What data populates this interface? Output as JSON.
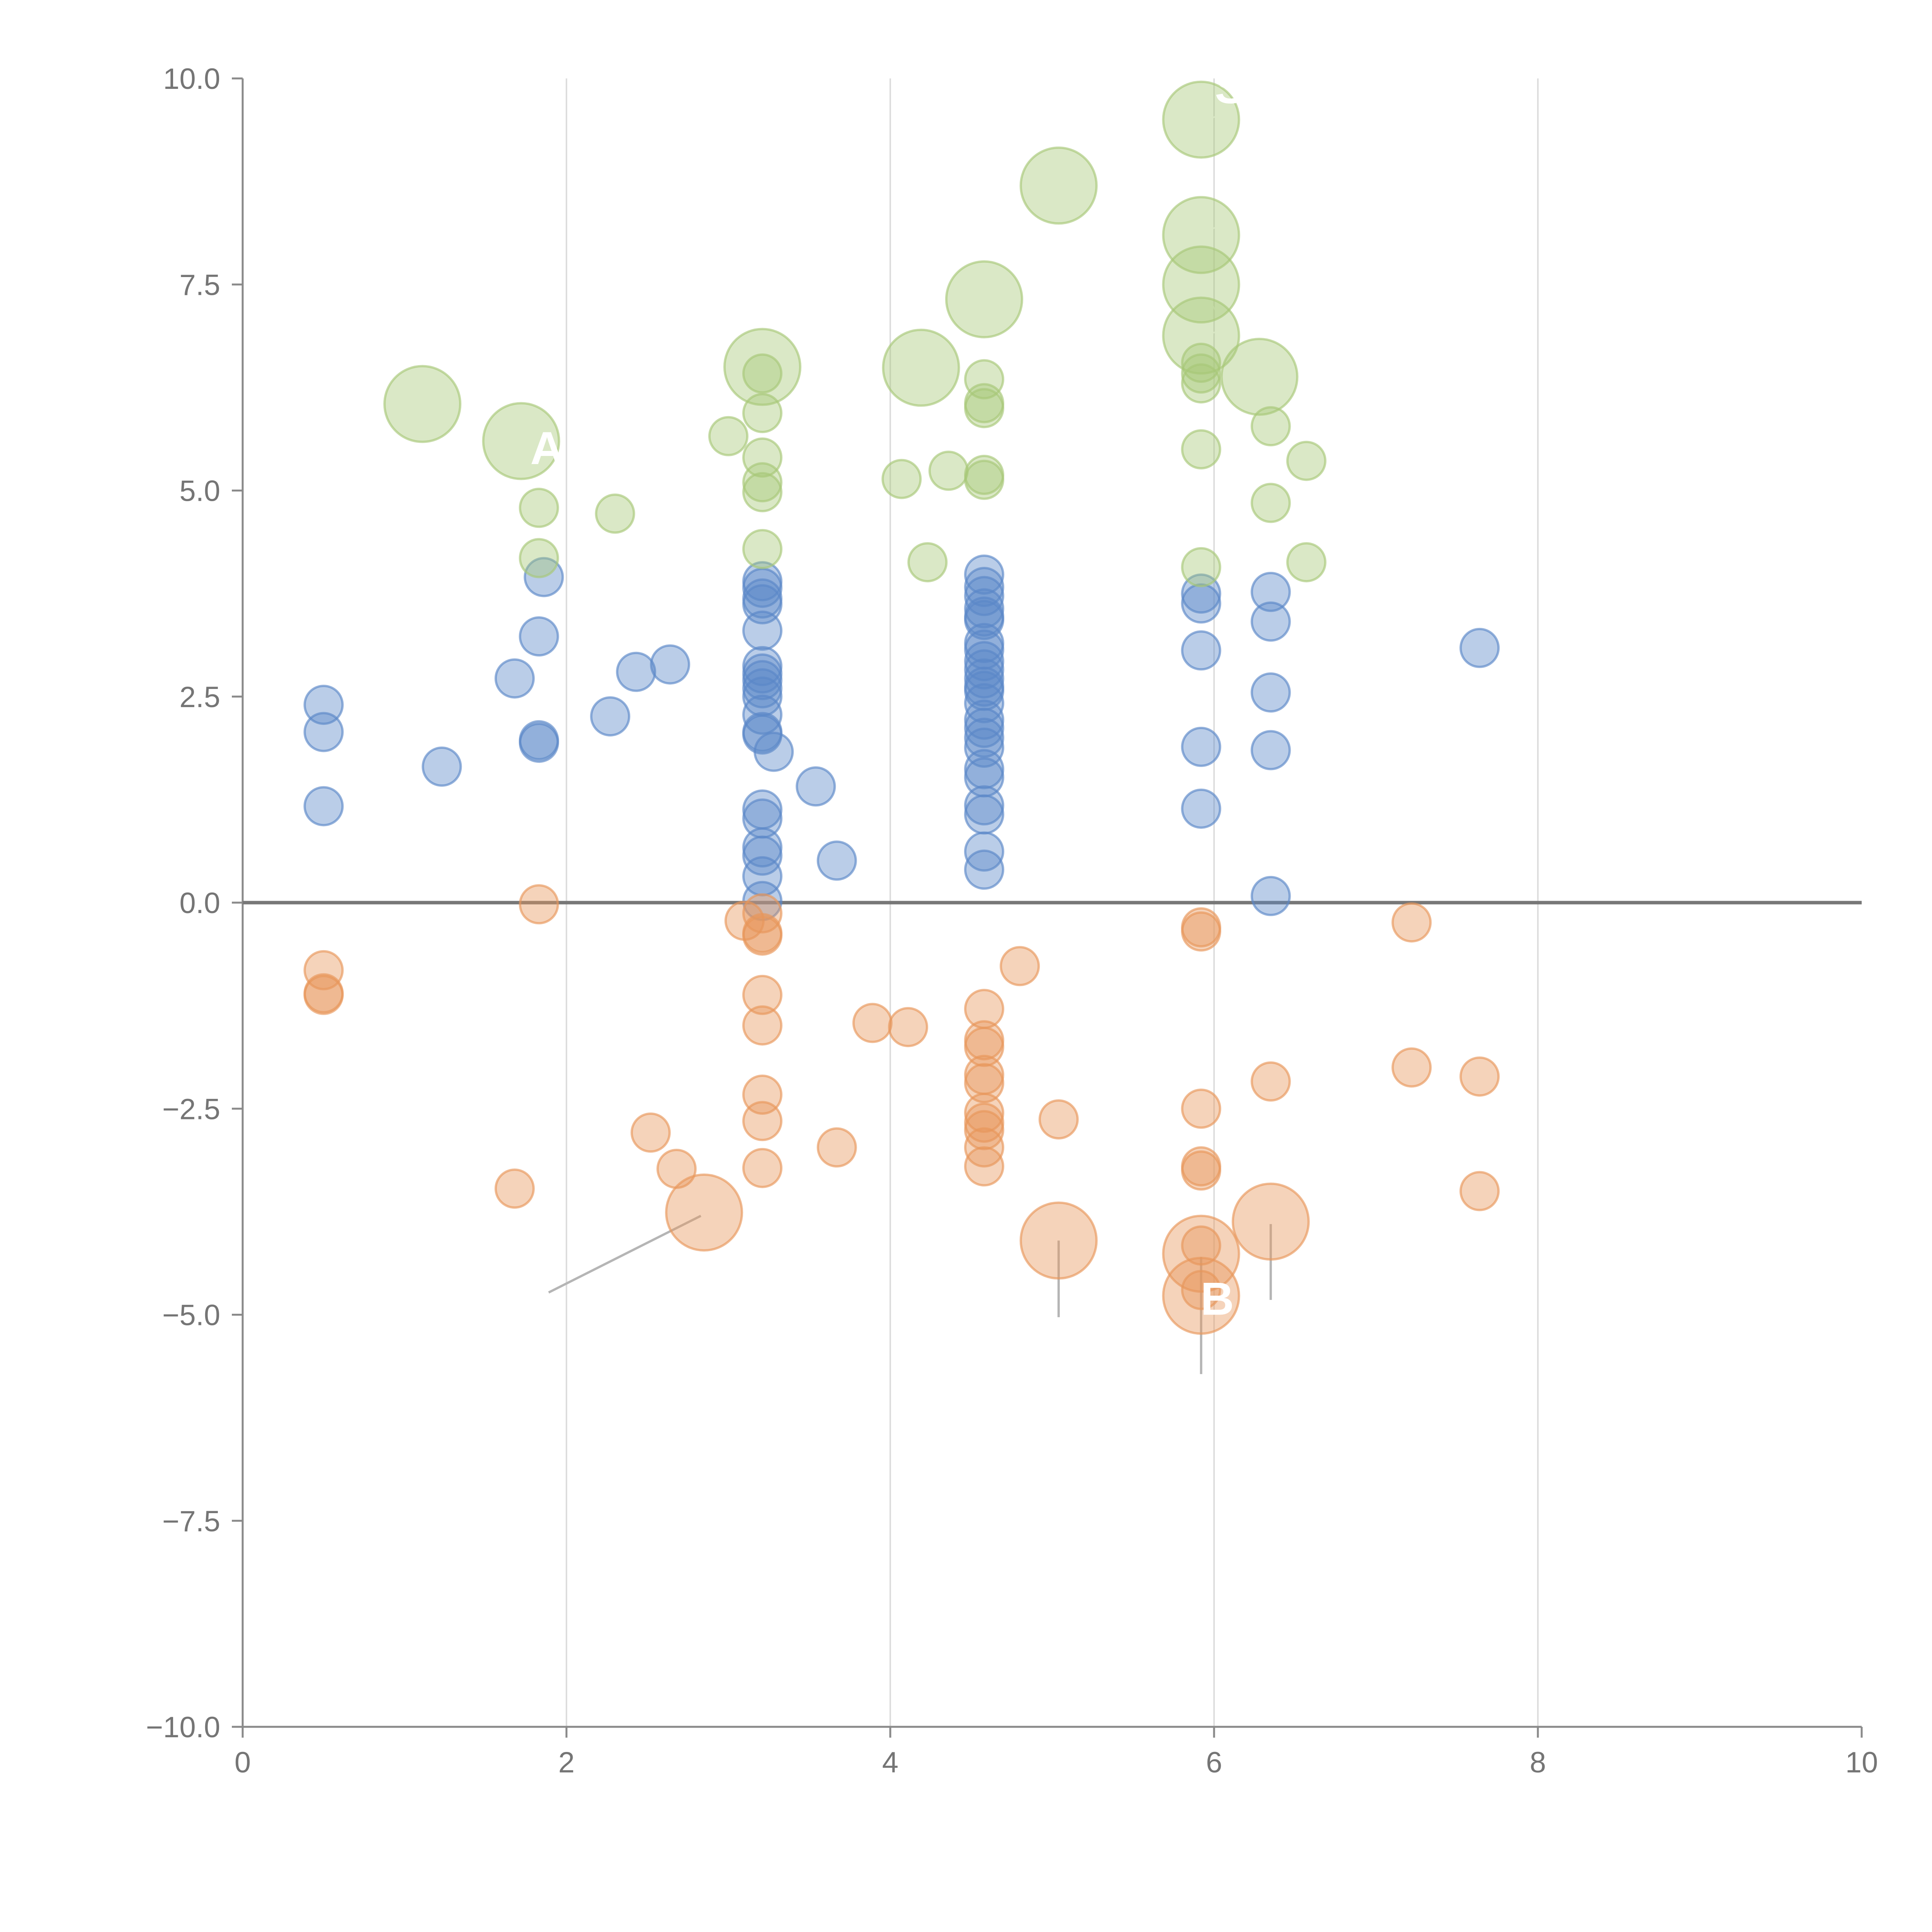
{
  "chart_data": {
    "type": "scatter",
    "title": "",
    "xlabel": "",
    "ylabel": "",
    "xlim": [
      0,
      10
    ],
    "ylim": [
      -10,
      10
    ],
    "x_ticks": [
      "0",
      "2",
      "4",
      "6",
      "8",
      "10"
    ],
    "y_ticks": [
      "10.0",
      "7.5",
      "5.0",
      "2.5",
      "0.0",
      "−2.5",
      "−5.0",
      "−7.5",
      "−10.0"
    ],
    "grid": "vertical",
    "zero_line": true,
    "series": [
      {
        "name": "blue",
        "color": "#5b87c8",
        "points": [
          {
            "x": 0.5,
            "y": 2.4,
            "s": 1
          },
          {
            "x": 0.5,
            "y": 2.07,
            "s": 1
          },
          {
            "x": 0.5,
            "y": 1.17,
            "s": 1
          },
          {
            "x": 1.23,
            "y": 1.65,
            "s": 1
          },
          {
            "x": 1.68,
            "y": 2.72,
            "s": 1
          },
          {
            "x": 1.83,
            "y": 1.97,
            "s": 1
          },
          {
            "x": 1.83,
            "y": 1.94,
            "s": 1
          },
          {
            "x": 1.83,
            "y": 3.23,
            "s": 1
          },
          {
            "x": 1.86,
            "y": 3.95,
            "s": 1
          },
          {
            "x": 2.27,
            "y": 2.26,
            "s": 1
          },
          {
            "x": 2.43,
            "y": 2.8,
            "s": 1
          },
          {
            "x": 2.64,
            "y": 2.89,
            "s": 1
          },
          {
            "x": 3.21,
            "y": 3.9,
            "s": 1
          },
          {
            "x": 3.21,
            "y": 3.82,
            "s": 1
          },
          {
            "x": 3.21,
            "y": 3.69,
            "s": 1
          },
          {
            "x": 3.21,
            "y": 3.62,
            "s": 1
          },
          {
            "x": 3.21,
            "y": 3.3,
            "s": 1
          },
          {
            "x": 3.21,
            "y": 2.87,
            "s": 1
          },
          {
            "x": 3.21,
            "y": 2.78,
            "s": 1
          },
          {
            "x": 3.21,
            "y": 2.7,
            "s": 1
          },
          {
            "x": 3.21,
            "y": 2.6,
            "s": 1
          },
          {
            "x": 3.21,
            "y": 2.5,
            "s": 1
          },
          {
            "x": 3.21,
            "y": 2.28,
            "s": 1
          },
          {
            "x": 3.21,
            "y": 2.07,
            "s": 1
          },
          {
            "x": 3.21,
            "y": 2.04,
            "s": 1
          },
          {
            "x": 3.28,
            "y": 1.83,
            "s": 1
          },
          {
            "x": 3.21,
            "y": 1.13,
            "s": 1
          },
          {
            "x": 3.21,
            "y": 1.02,
            "s": 1
          },
          {
            "x": 3.21,
            "y": 0.67,
            "s": 1
          },
          {
            "x": 3.21,
            "y": 0.57,
            "s": 1
          },
          {
            "x": 3.21,
            "y": 0.32,
            "s": 1
          },
          {
            "x": 3.21,
            "y": 0.02,
            "s": 1
          },
          {
            "x": 3.54,
            "y": 1.41,
            "s": 1
          },
          {
            "x": 3.67,
            "y": 0.51,
            "s": 1
          },
          {
            "x": 4.58,
            "y": 3.98,
            "s": 1
          },
          {
            "x": 4.58,
            "y": 3.83,
            "s": 1
          },
          {
            "x": 4.58,
            "y": 3.72,
            "s": 1
          },
          {
            "x": 4.58,
            "y": 3.57,
            "s": 1
          },
          {
            "x": 4.58,
            "y": 3.47,
            "s": 1
          },
          {
            "x": 4.58,
            "y": 3.43,
            "s": 1
          },
          {
            "x": 4.58,
            "y": 3.15,
            "s": 1
          },
          {
            "x": 4.58,
            "y": 3.07,
            "s": 1
          },
          {
            "x": 4.58,
            "y": 2.93,
            "s": 1
          },
          {
            "x": 4.58,
            "y": 2.83,
            "s": 1
          },
          {
            "x": 4.58,
            "y": 2.72,
            "s": 1
          },
          {
            "x": 4.58,
            "y": 2.62,
            "s": 1
          },
          {
            "x": 4.58,
            "y": 2.57,
            "s": 1
          },
          {
            "x": 4.58,
            "y": 2.42,
            "s": 1
          },
          {
            "x": 4.58,
            "y": 2.22,
            "s": 1
          },
          {
            "x": 4.58,
            "y": 2.12,
            "s": 1
          },
          {
            "x": 4.58,
            "y": 2.0,
            "s": 1
          },
          {
            "x": 4.58,
            "y": 1.88,
            "s": 1
          },
          {
            "x": 4.58,
            "y": 1.62,
            "s": 1
          },
          {
            "x": 4.58,
            "y": 1.52,
            "s": 1
          },
          {
            "x": 4.58,
            "y": 1.18,
            "s": 1
          },
          {
            "x": 4.58,
            "y": 1.07,
            "s": 1
          },
          {
            "x": 4.58,
            "y": 0.62,
            "s": 1
          },
          {
            "x": 4.58,
            "y": 0.4,
            "s": 1
          },
          {
            "x": 5.92,
            "y": 3.75,
            "s": 1
          },
          {
            "x": 5.92,
            "y": 3.63,
            "s": 1
          },
          {
            "x": 5.92,
            "y": 3.06,
            "s": 1
          },
          {
            "x": 5.92,
            "y": 1.89,
            "s": 1
          },
          {
            "x": 5.92,
            "y": 1.14,
            "s": 1
          },
          {
            "x": 6.35,
            "y": 3.77,
            "s": 1
          },
          {
            "x": 6.35,
            "y": 3.41,
            "s": 1
          },
          {
            "x": 6.35,
            "y": 2.55,
            "s": 1
          },
          {
            "x": 6.35,
            "y": 1.85,
            "s": 1
          },
          {
            "x": 6.35,
            "y": 0.08,
            "s": 1
          },
          {
            "x": 7.64,
            "y": 3.09,
            "s": 1
          }
        ]
      },
      {
        "name": "orange",
        "color": "#e8975a",
        "points": [
          {
            "x": 0.5,
            "y": -0.82,
            "s": 1
          },
          {
            "x": 0.5,
            "y": -1.1,
            "s": 1
          },
          {
            "x": 0.5,
            "y": -1.12,
            "s": 1
          },
          {
            "x": 1.68,
            "y": -3.47,
            "s": 1
          },
          {
            "x": 1.83,
            "y": -0.02,
            "s": 1
          },
          {
            "x": 2.52,
            "y": -2.79,
            "s": 1
          },
          {
            "x": 2.68,
            "y": -3.23,
            "s": 1
          },
          {
            "x": 2.85,
            "y": -3.76,
            "s": 2
          },
          {
            "x": 3.1,
            "y": -0.22,
            "s": 1
          },
          {
            "x": 3.21,
            "y": -0.13,
            "s": 1
          },
          {
            "x": 3.21,
            "y": -0.37,
            "s": 1
          },
          {
            "x": 3.21,
            "y": -0.4,
            "s": 1
          },
          {
            "x": 3.21,
            "y": -1.12,
            "s": 1
          },
          {
            "x": 3.21,
            "y": -1.49,
            "s": 1
          },
          {
            "x": 3.21,
            "y": -2.33,
            "s": 1
          },
          {
            "x": 3.21,
            "y": -2.65,
            "s": 1
          },
          {
            "x": 3.21,
            "y": -3.22,
            "s": 1
          },
          {
            "x": 3.67,
            "y": -2.97,
            "s": 1
          },
          {
            "x": 3.89,
            "y": -1.46,
            "s": 1
          },
          {
            "x": 4.11,
            "y": -1.51,
            "s": 1
          },
          {
            "x": 4.58,
            "y": -1.29,
            "s": 1
          },
          {
            "x": 4.58,
            "y": -1.67,
            "s": 1
          },
          {
            "x": 4.58,
            "y": -1.75,
            "s": 1
          },
          {
            "x": 4.58,
            "y": -2.09,
            "s": 1
          },
          {
            "x": 4.58,
            "y": -2.19,
            "s": 1
          },
          {
            "x": 4.58,
            "y": -2.55,
            "s": 1
          },
          {
            "x": 4.58,
            "y": -2.67,
            "s": 1
          },
          {
            "x": 4.58,
            "y": -2.76,
            "s": 1
          },
          {
            "x": 4.58,
            "y": -2.97,
            "s": 1
          },
          {
            "x": 4.58,
            "y": -3.2,
            "s": 1
          },
          {
            "x": 4.8,
            "y": -0.77,
            "s": 1
          },
          {
            "x": 5.04,
            "y": -2.63,
            "s": 1
          },
          {
            "x": 5.04,
            "y": -4.1,
            "s": 2
          },
          {
            "x": 5.92,
            "y": -0.3,
            "s": 1
          },
          {
            "x": 5.92,
            "y": -0.35,
            "s": 1
          },
          {
            "x": 5.92,
            "y": -2.5,
            "s": 1
          },
          {
            "x": 5.92,
            "y": -3.2,
            "s": 1
          },
          {
            "x": 5.92,
            "y": -3.25,
            "s": 1
          },
          {
            "x": 5.92,
            "y": -4.16,
            "s": 1
          },
          {
            "x": 5.92,
            "y": -4.26,
            "s": 2
          },
          {
            "x": 5.92,
            "y": -4.7,
            "s": 1
          },
          {
            "x": 5.92,
            "y": -4.77,
            "s": 2
          },
          {
            "x": 6.35,
            "y": -2.17,
            "s": 1
          },
          {
            "x": 6.35,
            "y": -3.87,
            "s": 2
          },
          {
            "x": 7.22,
            "y": -0.24,
            "s": 1
          },
          {
            "x": 7.22,
            "y": -2.0,
            "s": 1
          },
          {
            "x": 7.64,
            "y": -2.11,
            "s": 1
          },
          {
            "x": 7.64,
            "y": -3.5,
            "s": 1
          }
        ]
      },
      {
        "name": "green",
        "color": "#a8c878",
        "points": [
          {
            "x": 1.11,
            "y": 6.05,
            "s": 2
          },
          {
            "x": 1.72,
            "y": 5.6,
            "s": 2
          },
          {
            "x": 1.83,
            "y": 4.79,
            "s": 1
          },
          {
            "x": 1.83,
            "y": 4.18,
            "s": 1
          },
          {
            "x": 2.3,
            "y": 4.72,
            "s": 1
          },
          {
            "x": 3.0,
            "y": 5.66,
            "s": 1
          },
          {
            "x": 3.21,
            "y": 6.5,
            "s": 2
          },
          {
            "x": 3.21,
            "y": 6.42,
            "s": 1
          },
          {
            "x": 3.21,
            "y": 5.94,
            "s": 1
          },
          {
            "x": 3.21,
            "y": 5.4,
            "s": 1
          },
          {
            "x": 3.21,
            "y": 5.1,
            "s": 1
          },
          {
            "x": 3.21,
            "y": 4.98,
            "s": 1
          },
          {
            "x": 3.21,
            "y": 4.29,
            "s": 1
          },
          {
            "x": 4.07,
            "y": 5.14,
            "s": 1
          },
          {
            "x": 4.19,
            "y": 6.49,
            "s": 2
          },
          {
            "x": 4.23,
            "y": 4.13,
            "s": 1
          },
          {
            "x": 4.36,
            "y": 5.24,
            "s": 1
          },
          {
            "x": 4.58,
            "y": 7.32,
            "s": 2
          },
          {
            "x": 4.58,
            "y": 6.35,
            "s": 1
          },
          {
            "x": 4.58,
            "y": 6.06,
            "s": 1
          },
          {
            "x": 4.58,
            "y": 6.0,
            "s": 1
          },
          {
            "x": 4.58,
            "y": 5.19,
            "s": 1
          },
          {
            "x": 4.58,
            "y": 5.13,
            "s": 1
          },
          {
            "x": 5.04,
            "y": 8.7,
            "s": 2
          },
          {
            "x": 5.92,
            "y": 9.5,
            "s": 2
          },
          {
            "x": 5.92,
            "y": 8.1,
            "s": 2
          },
          {
            "x": 5.92,
            "y": 7.5,
            "s": 2
          },
          {
            "x": 5.92,
            "y": 6.88,
            "s": 2
          },
          {
            "x": 5.92,
            "y": 6.55,
            "s": 1
          },
          {
            "x": 5.92,
            "y": 6.42,
            "s": 1
          },
          {
            "x": 5.92,
            "y": 6.3,
            "s": 1
          },
          {
            "x": 5.92,
            "y": 5.5,
            "s": 1
          },
          {
            "x": 5.92,
            "y": 4.07,
            "s": 1
          },
          {
            "x": 6.28,
            "y": 6.38,
            "s": 2
          },
          {
            "x": 6.35,
            "y": 5.78,
            "s": 1
          },
          {
            "x": 6.35,
            "y": 4.85,
            "s": 1
          },
          {
            "x": 6.57,
            "y": 5.36,
            "s": 1
          },
          {
            "x": 6.57,
            "y": 4.13,
            "s": 1
          }
        ]
      }
    ],
    "annotations": [
      {
        "text": "A",
        "x": 1.88,
        "y": 5.32,
        "color": "#ffffff"
      },
      {
        "text": "B",
        "x": 6.02,
        "y": -5.0,
        "color": "#ffffff"
      },
      {
        "text": "S",
        "x": 6.1,
        "y": 9.7,
        "color": "#ffffff"
      }
    ]
  }
}
